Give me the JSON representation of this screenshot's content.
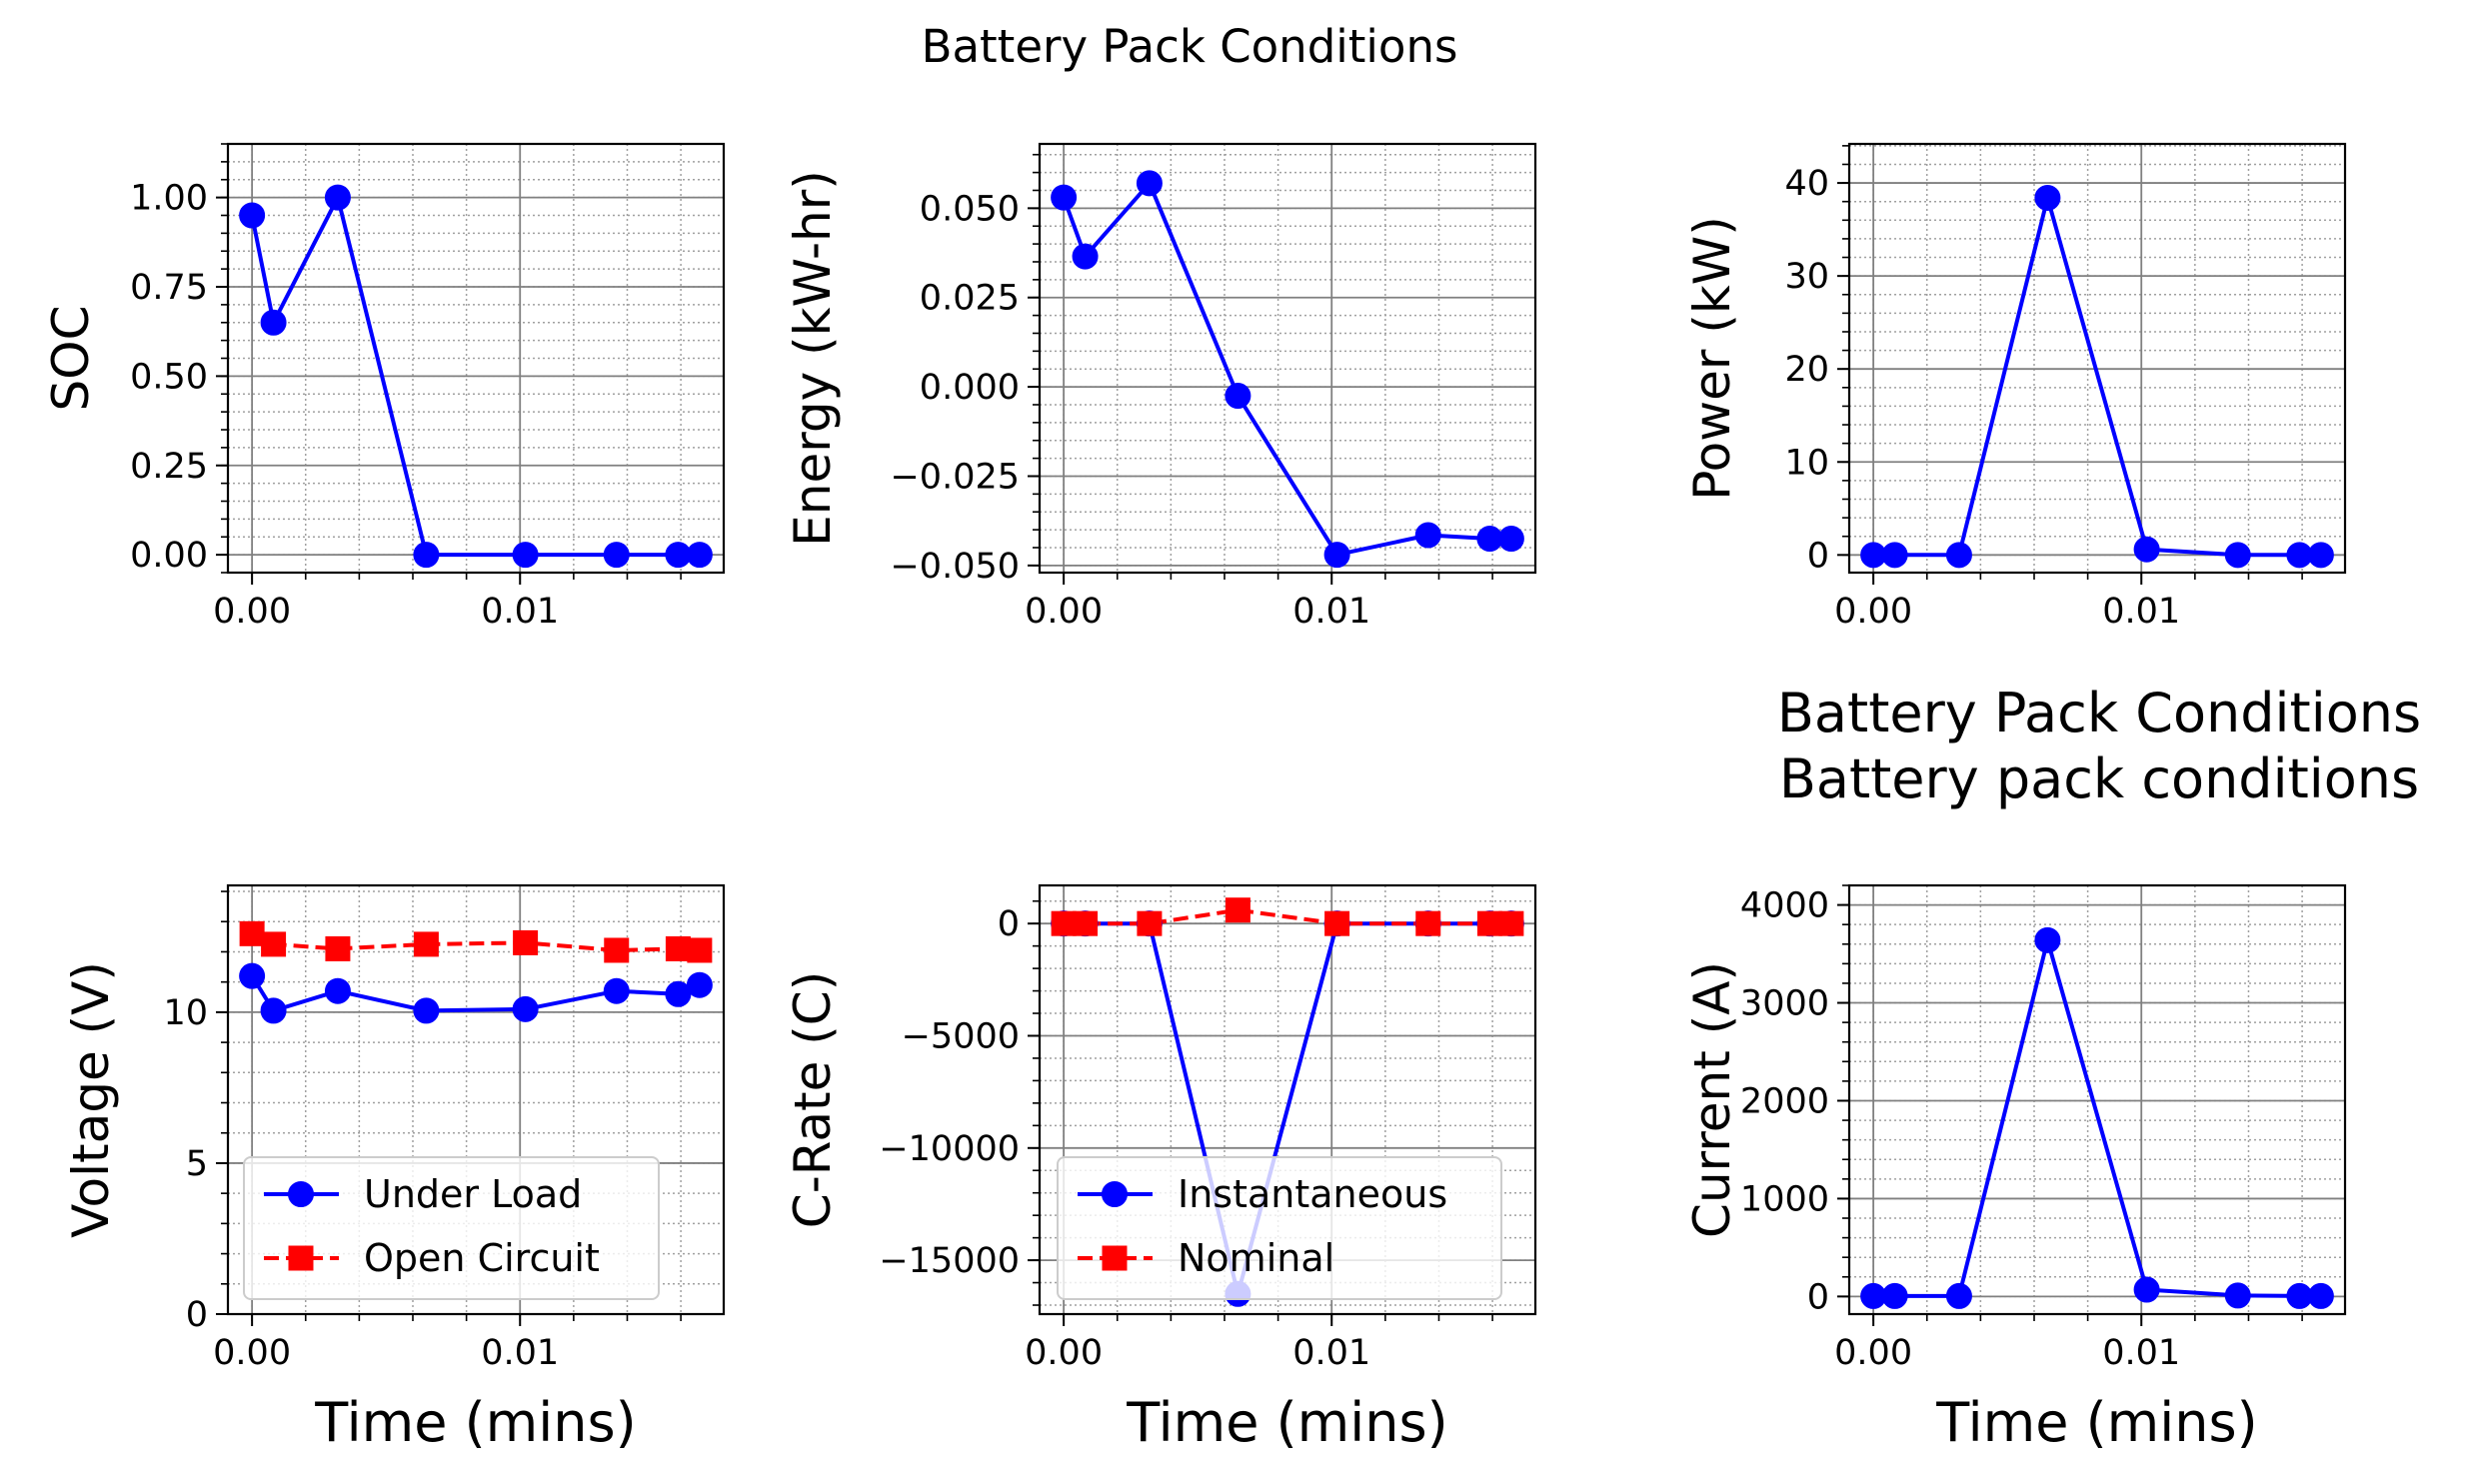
{
  "figure": {
    "suptitle": "Battery Pack Conditions",
    "secondary_title": [
      "Battery Pack Conditions",
      "Battery pack conditions"
    ]
  },
  "colors": {
    "blue": "#0000ff",
    "red": "#ff0000",
    "major_grid": "#808080",
    "minor_grid": "#a0a0a0"
  },
  "chart_data": [
    {
      "id": "soc",
      "type": "line",
      "title": "",
      "xlabel": "",
      "ylabel": "SOC",
      "xlim": [
        -0.0009,
        0.0176
      ],
      "ylim": [
        -0.05,
        1.15
      ],
      "xticks": [
        0.0,
        0.01
      ],
      "xticklabels": [
        "0.00",
        "0.01"
      ],
      "yticks": [
        0.0,
        0.25,
        0.5,
        0.75,
        1.0
      ],
      "yticklabels": [
        "0.00",
        "0.25",
        "0.50",
        "0.75",
        "1.00"
      ],
      "x_minor_step": 0.002,
      "y_minor_step": 0.05,
      "series": [
        {
          "name": "",
          "color": "#0000ff",
          "marker": "circle",
          "linestyle": "solid",
          "x": [
            0.0,
            0.0008,
            0.0032,
            0.0065,
            0.0102,
            0.0136,
            0.0159,
            0.0167
          ],
          "y": [
            0.95,
            0.65,
            1.0,
            0.0,
            0.0,
            0.0,
            0.0,
            0.0
          ]
        }
      ]
    },
    {
      "id": "energy",
      "type": "line",
      "title": "",
      "xlabel": "",
      "ylabel": "Energy (kW-hr)",
      "xlim": [
        -0.0009,
        0.0176
      ],
      "ylim": [
        -0.052,
        0.068
      ],
      "xticks": [
        0.0,
        0.01
      ],
      "xticklabels": [
        "0.00",
        "0.01"
      ],
      "yticks": [
        -0.05,
        -0.025,
        0.0,
        0.025,
        0.05
      ],
      "yticklabels": [
        "−0.050",
        "−0.025",
        "0.000",
        "0.025",
        "0.050"
      ],
      "x_minor_step": 0.002,
      "y_minor_step": 0.005,
      "series": [
        {
          "name": "",
          "color": "#0000ff",
          "marker": "circle",
          "linestyle": "solid",
          "x": [
            0.0,
            0.0008,
            0.0032,
            0.0065,
            0.0102,
            0.0136,
            0.0159,
            0.0167
          ],
          "y": [
            0.053,
            0.0365,
            0.057,
            -0.0025,
            -0.047,
            -0.0415,
            -0.0425,
            -0.0425
          ]
        }
      ]
    },
    {
      "id": "power",
      "type": "line",
      "title": "",
      "xlabel": "",
      "ylabel": "Power (kW)",
      "xlim": [
        -0.0009,
        0.0176
      ],
      "ylim": [
        -1.9,
        44.2
      ],
      "xticks": [
        0.0,
        0.01
      ],
      "xticklabels": [
        "0.00",
        "0.01"
      ],
      "yticks": [
        0,
        10,
        20,
        30,
        40
      ],
      "yticklabels": [
        "0",
        "10",
        "20",
        "30",
        "40"
      ],
      "x_minor_step": 0.002,
      "y_minor_step": 2,
      "series": [
        {
          "name": "",
          "color": "#0000ff",
          "marker": "circle",
          "linestyle": "solid",
          "x": [
            0.0,
            0.0008,
            0.0032,
            0.0065,
            0.0102,
            0.0136,
            0.0159,
            0.0167
          ],
          "y": [
            0.0,
            0.0,
            0.0,
            38.4,
            0.6,
            0.0,
            0.0,
            0.0
          ]
        }
      ]
    },
    {
      "id": "voltage",
      "type": "line",
      "title": "",
      "xlabel": "Time (mins)",
      "ylabel": "Voltage (V)",
      "xlim": [
        -0.0009,
        0.0176
      ],
      "ylim": [
        0,
        14.2
      ],
      "xticks": [
        0.0,
        0.01
      ],
      "xticklabels": [
        "0.00",
        "0.01"
      ],
      "yticks": [
        0,
        5,
        10
      ],
      "yticklabels": [
        "0",
        "5",
        "10"
      ],
      "x_minor_step": 0.002,
      "y_minor_step": 1,
      "legend": "lower-left",
      "series": [
        {
          "name": "Under Load",
          "color": "#0000ff",
          "marker": "circle",
          "linestyle": "solid",
          "x": [
            0.0,
            0.0008,
            0.0032,
            0.0065,
            0.0102,
            0.0136,
            0.0159,
            0.0167
          ],
          "y": [
            11.2,
            10.05,
            10.7,
            10.05,
            10.1,
            10.7,
            10.6,
            10.9
          ]
        },
        {
          "name": "Open Circuit",
          "color": "#ff0000",
          "marker": "square",
          "linestyle": "dashed",
          "x": [
            0.0,
            0.0008,
            0.0032,
            0.0065,
            0.0102,
            0.0136,
            0.0159,
            0.0167
          ],
          "y": [
            12.6,
            12.25,
            12.1,
            12.25,
            12.3,
            12.05,
            12.1,
            12.05
          ]
        }
      ]
    },
    {
      "id": "crate",
      "type": "line",
      "title": "",
      "xlabel": "Time (mins)",
      "ylabel": "C-Rate (C)",
      "xlim": [
        -0.0009,
        0.0176
      ],
      "ylim": [
        -17400,
        1700
      ],
      "xticks": [
        0.0,
        0.01
      ],
      "xticklabels": [
        "0.00",
        "0.01"
      ],
      "yticks": [
        -15000,
        -10000,
        -5000,
        0
      ],
      "yticklabels": [
        "−15000",
        "−10000",
        "−5000",
        "0"
      ],
      "x_minor_step": 0.002,
      "y_minor_step": 1000,
      "legend": "lower-left",
      "series": [
        {
          "name": "Instantaneous",
          "color": "#0000ff",
          "marker": "circle",
          "linestyle": "solid",
          "x": [
            0.0,
            0.0008,
            0.0032,
            0.0065,
            0.0102,
            0.0136,
            0.0159,
            0.0167
          ],
          "y": [
            0,
            0,
            0,
            -16500,
            0,
            0,
            0,
            0
          ]
        },
        {
          "name": "Nominal",
          "color": "#ff0000",
          "marker": "square",
          "linestyle": "dashed",
          "x": [
            0.0,
            0.0008,
            0.0032,
            0.0065,
            0.0102,
            0.0136,
            0.0159,
            0.0167
          ],
          "y": [
            0,
            0,
            0,
            600,
            0,
            0,
            0,
            0
          ]
        }
      ]
    },
    {
      "id": "current",
      "type": "line",
      "title": "",
      "xlabel": "Time (mins)",
      "ylabel": "Current (A)",
      "xlim": [
        -0.0009,
        0.0176
      ],
      "ylim": [
        -180,
        4200
      ],
      "xticks": [
        0.0,
        0.01
      ],
      "xticklabels": [
        "0.00",
        "0.01"
      ],
      "yticks": [
        0,
        1000,
        2000,
        3000,
        4000
      ],
      "yticklabels": [
        "0",
        "1000",
        "2000",
        "3000",
        "4000"
      ],
      "x_minor_step": 0.002,
      "y_minor_step": 200,
      "series": [
        {
          "name": "",
          "color": "#0000ff",
          "marker": "circle",
          "linestyle": "solid",
          "x": [
            0.0,
            0.0008,
            0.0032,
            0.0065,
            0.0102,
            0.0136,
            0.0159,
            0.0167
          ],
          "y": [
            5,
            5,
            5,
            3640,
            70,
            10,
            5,
            5
          ]
        }
      ]
    }
  ]
}
